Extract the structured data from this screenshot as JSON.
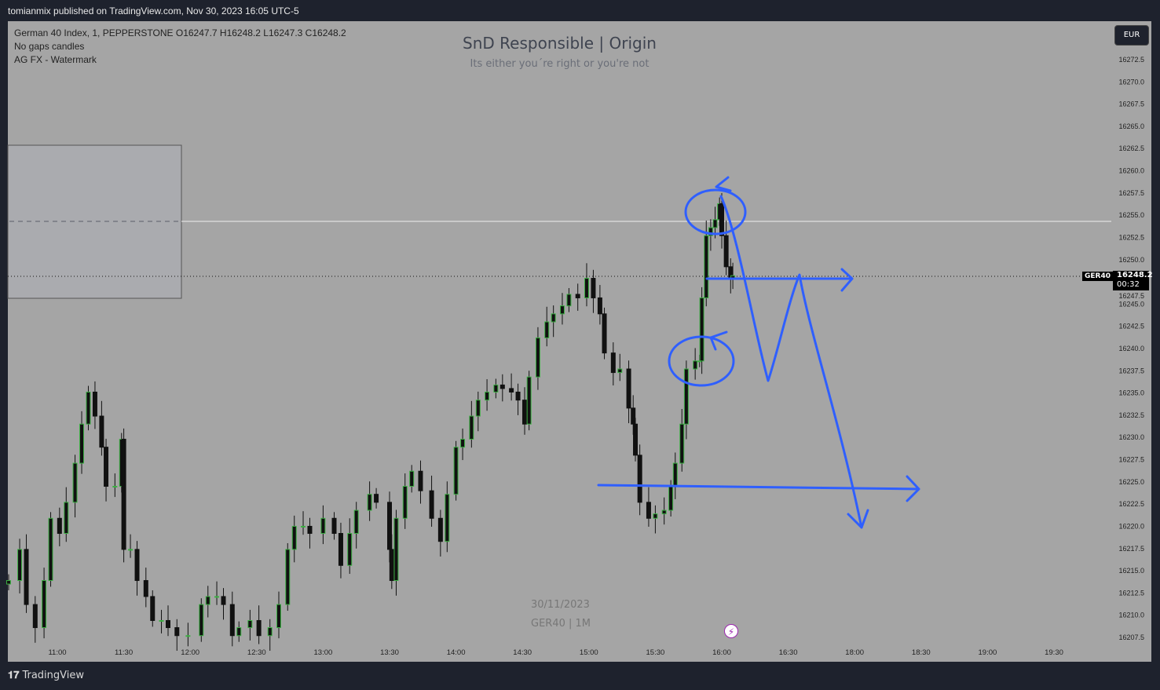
{
  "publisher": "tomianmix published on TradingView.com, Nov 30, 2023 16:05 UTC-5",
  "legend": {
    "line1": "German 40 Index, 1, PEPPERSTONE  O16247.7  H16248.2  L16247.3  C16248.2",
    "line2": "No gaps candles",
    "line3": "AG FX - Watermark"
  },
  "watermark": {
    "title": "SnD Responsible | Origin",
    "subtitle": "Its either you´re right or you're not",
    "date": "30/11/2023",
    "symbol_tf": "GER40 | 1M"
  },
  "currency": "EUR",
  "price_tag": {
    "symbol": "GER40",
    "price": "16248.2",
    "countdown": "00:32"
  },
  "footer": {
    "brand": "TradingView"
  },
  "colors": {
    "background": "#a5a5a5",
    "frame": "#1e222d",
    "drawing": "#2f5fff",
    "bull_outline": "#3cb043",
    "bear": "#111111"
  },
  "chart_data": {
    "type": "candlestick",
    "title": "German 40 Index, 1, PEPPERSTONE",
    "ylabel": "EUR",
    "ylim": [
      16206,
      16275
    ],
    "x_ticks": [
      "11:00",
      "11:30",
      "12:00",
      "12:30",
      "13:00",
      "13:30",
      "14:00",
      "14:30",
      "15:00",
      "15:30",
      "16:00",
      "16:30",
      "18:00",
      "18:30",
      "19:00",
      "19:30"
    ],
    "y_ticks": [
      "16272.5",
      "16270.0",
      "16267.5",
      "16265.0",
      "16262.5",
      "16260.0",
      "16257.5",
      "16255.0",
      "16252.5",
      "16250.0",
      "16247.5",
      "16245.0",
      "16242.5",
      "16240.0",
      "16237.5",
      "16235.0",
      "16232.5",
      "16230.0",
      "16227.5",
      "16225.0",
      "16222.5",
      "16220.0",
      "16217.5",
      "16215.0",
      "16212.5",
      "16210.0",
      "16207.5"
    ],
    "horizontal_level": 16254.3,
    "last_price": 16248.2,
    "approx_close_series": [
      [
        "10:38",
        16213.9
      ],
      [
        "10:43",
        16217.4
      ],
      [
        "10:46",
        16211.2
      ],
      [
        "10:50",
        16208.6
      ],
      [
        "10:54",
        16213.9
      ],
      [
        "10:57",
        16220.9
      ],
      [
        "11:01",
        16219.2
      ],
      [
        "11:04",
        16222.7
      ],
      [
        "11:08",
        16227.1
      ],
      [
        "11:11",
        16231.5
      ],
      [
        "11:14",
        16235.1
      ],
      [
        "11:17",
        16232.4
      ],
      [
        "11:20",
        16228.9
      ],
      [
        "11:22",
        16224.5
      ],
      [
        "11:26",
        16224.5
      ],
      [
        "11:29",
        16229.8
      ],
      [
        "11:30",
        16217.4
      ],
      [
        "11:33",
        16217.4
      ],
      [
        "11:36",
        16213.9
      ],
      [
        "11:40",
        16212.1
      ],
      [
        "11:43",
        16209.4
      ],
      [
        "11:47",
        16209.4
      ],
      [
        "11:50",
        16208.6
      ],
      [
        "11:54",
        16207.7
      ],
      [
        "11:59",
        16207.7
      ],
      [
        "12:05",
        16211.2
      ],
      [
        "12:08",
        16212.1
      ],
      [
        "12:12",
        16212.1
      ],
      [
        "12:15",
        16211.2
      ],
      [
        "12:19",
        16207.7
      ],
      [
        "12:22",
        16208.6
      ],
      [
        "12:27",
        16209.4
      ],
      [
        "12:31",
        16207.7
      ],
      [
        "12:36",
        16208.6
      ],
      [
        "12:40",
        16211.2
      ],
      [
        "12:44",
        16217.4
      ],
      [
        "12:47",
        16220.0
      ],
      [
        "12:51",
        16220.0
      ],
      [
        "12:54",
        16219.2
      ],
      [
        "13:00",
        16220.9
      ],
      [
        "13:05",
        16219.2
      ],
      [
        "13:08",
        16215.6
      ],
      [
        "13:12",
        16219.2
      ],
      [
        "13:15",
        16221.8
      ],
      [
        "13:21",
        16223.6
      ],
      [
        "13:24",
        16222.7
      ],
      [
        "13:30",
        16217.4
      ],
      [
        "13:31",
        16213.9
      ],
      [
        "13:33",
        16220.9
      ],
      [
        "13:37",
        16224.5
      ],
      [
        "13:40",
        16226.2
      ],
      [
        "13:44",
        16224.0
      ],
      [
        "13:49",
        16220.9
      ],
      [
        "13:53",
        16218.3
      ],
      [
        "13:56",
        16223.6
      ],
      [
        "14:00",
        16228.9
      ],
      [
        "14:03",
        16229.8
      ],
      [
        "14:07",
        16232.4
      ],
      [
        "14:10",
        16234.2
      ],
      [
        "14:14",
        16235.1
      ],
      [
        "14:18",
        16235.9
      ],
      [
        "14:21",
        16235.5
      ],
      [
        "14:25",
        16235.1
      ],
      [
        "14:28",
        16234.2
      ],
      [
        "14:31",
        16231.5
      ],
      [
        "14:33",
        16236.8
      ],
      [
        "14:37",
        16241.2
      ],
      [
        "14:41",
        16243.0
      ],
      [
        "14:44",
        16243.9
      ],
      [
        "14:48",
        16244.8
      ],
      [
        "14:51",
        16246.1
      ],
      [
        "14:55",
        16245.7
      ],
      [
        "14:59",
        16247.9
      ],
      [
        "15:02",
        16245.7
      ],
      [
        "15:05",
        16243.9
      ],
      [
        "15:07",
        16239.5
      ],
      [
        "15:11",
        16237.3
      ],
      [
        "15:14",
        16237.7
      ],
      [
        "15:18",
        16233.3
      ],
      [
        "15:20",
        16231.5
      ],
      [
        "15:21",
        16228.0
      ],
      [
        "15:23",
        16222.7
      ],
      [
        "15:27",
        16220.9
      ],
      [
        "15:30",
        16221.4
      ],
      [
        "15:34",
        16221.8
      ],
      [
        "15:37",
        16224.5
      ],
      [
        "15:39",
        16227.1
      ],
      [
        "15:42",
        16231.5
      ],
      [
        "15:44",
        16237.7
      ],
      [
        "15:48",
        16238.6
      ],
      [
        "15:50",
        16238.6
      ],
      [
        "15:51",
        16245.7
      ],
      [
        "15:53",
        16252.7
      ],
      [
        "15:55",
        16253.6
      ],
      [
        "15:57",
        16254.5
      ],
      [
        "15:59",
        16256.3
      ],
      [
        "16:00",
        16252.7
      ],
      [
        "16:02",
        16249.2
      ],
      [
        "16:04",
        16247.9
      ],
      [
        "16:05",
        16248.2
      ]
    ]
  }
}
